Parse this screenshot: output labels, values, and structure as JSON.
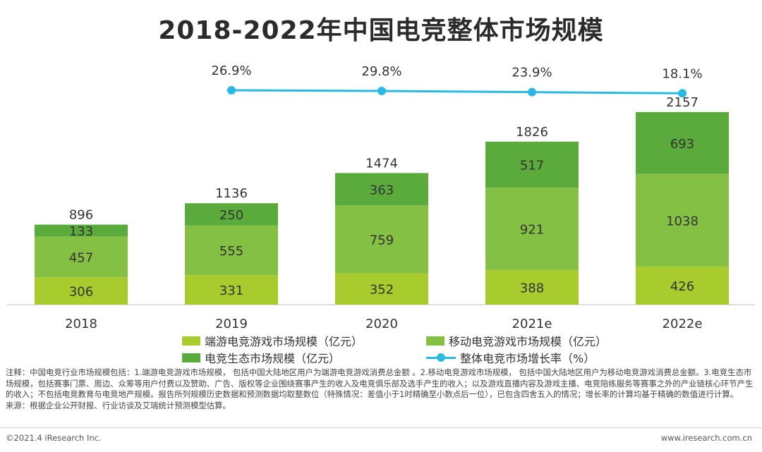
{
  "chart_data": {
    "type": "bar",
    "title": "2018-2022年中国电竞整体市场规模",
    "categories": [
      "2018",
      "2019",
      "2020",
      "2021e",
      "2022e"
    ],
    "stacked": true,
    "series": [
      {
        "name": "端游电竞游戏市场规模（亿元）",
        "values": [
          306,
          331,
          352,
          388,
          426
        ],
        "color": "#a8cc2e"
      },
      {
        "name": "移动电竞游戏市场规模（亿元）",
        "values": [
          457,
          555,
          759,
          921,
          1038
        ],
        "color": "#84c043"
      },
      {
        "name": "电竞生态市场规模（亿元）",
        "values": [
          133,
          250,
          363,
          517,
          693
        ],
        "color": "#5aab3c"
      }
    ],
    "totals": [
      896,
      1136,
      1474,
      1826,
      2157
    ],
    "line_series": {
      "name": "整体电竞市场增长率（%）",
      "values": [
        26.9,
        29.8,
        23.9,
        18.1
      ],
      "labels": [
        "26.9%",
        "29.8%",
        "23.9%",
        "18.1%"
      ],
      "categories": [
        "2019",
        "2020",
        "2021e",
        "2022e"
      ],
      "color": "#2ab8e4"
    },
    "ylim": [
      0,
      2400
    ],
    "xlabel": "",
    "ylabel": ""
  },
  "legend": {
    "items": [
      {
        "label": "端游电竞游戏市场规模（亿元）",
        "color": "#a8cc2e",
        "kind": "bar"
      },
      {
        "label": "移动电竞游戏市场规模（亿元）",
        "color": "#84c043",
        "kind": "bar"
      },
      {
        "label": "电竞生态市场规模（亿元）",
        "color": "#5aab3c",
        "kind": "bar"
      },
      {
        "label": "整体电竞市场增长率（%）",
        "color": "#2ab8e4",
        "kind": "line"
      }
    ]
  },
  "notes": {
    "text": "注释：中国电竞行业市场规模包括：1.端游电竞游戏市场规模， 包括中国大陆地区用户为端游电竞游戏消费总金额 。2.移动电竞游戏市场规模， 包括中国大陆地区用户为移动电竞游戏消费总金额。3.电竞生态市场规模，包括赛事门票、周边、众筹等用户付费以及赞助、广告、版权等企业围绕赛事产生的收入及电竞俱乐部及选手产生的收入；以及游戏直播内容及游戏主播、电竞陪练服务等赛事之外的产业链核心环节产生的收入；不包括电竞教育与电竞地产规模。报告所列规模历史数据和预测数据均取整数位（特殊情况：差值小于1时精确至小数点后一位），已包含四舍五入的情况；增长率的计算均基于精确的数值进行计算。",
    "source": "来源：根据企业公开财报、行业访谈及艾瑞统计预测模型估算。"
  },
  "footer": {
    "copyright": "©2021.4 iResearch Inc.",
    "website": "www.iresearch.com.cn"
  }
}
